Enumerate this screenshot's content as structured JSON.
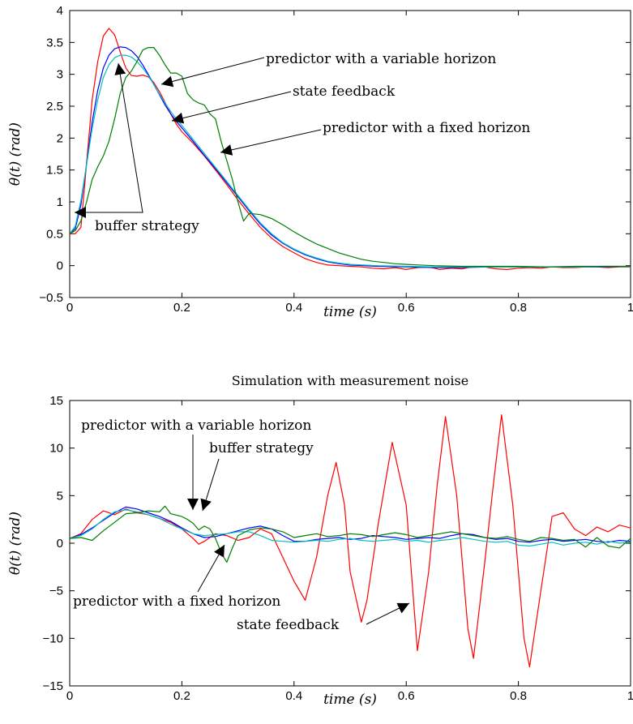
{
  "chart_data": [
    {
      "type": "line",
      "title": "",
      "xlabel": "time (s)",
      "ylabel": "θ(t) (rad)",
      "xlim": [
        0,
        1
      ],
      "ylim": [
        -0.5,
        4
      ],
      "xticks": [
        "0",
        "0.2",
        "0.4",
        "0.6",
        "0.8",
        "1"
      ],
      "yticks": [
        "−0.5",
        "0",
        "0.5",
        "1",
        "1.5",
        "2",
        "2.5",
        "3",
        "3.5",
        "4"
      ],
      "grid": false,
      "series": [
        {
          "color": "#ff0000",
          "x": [
            0,
            0.01,
            0.02,
            0.03,
            0.04,
            0.05,
            0.06,
            0.07,
            0.08,
            0.09,
            0.1,
            0.11,
            0.12,
            0.13,
            0.14,
            0.15,
            0.16,
            0.17,
            0.18,
            0.19,
            0.2,
            0.22,
            0.24,
            0.26,
            0.28,
            0.3,
            0.32,
            0.34,
            0.36,
            0.38,
            0.4,
            0.42,
            0.44,
            0.46,
            0.48,
            0.5,
            0.52,
            0.54,
            0.56,
            0.58,
            0.6,
            0.62,
            0.64,
            0.66,
            0.68,
            0.7,
            0.72,
            0.74,
            0.76,
            0.78,
            0.8,
            0.82,
            0.84,
            0.86,
            0.88,
            0.9,
            0.92,
            0.94,
            0.96,
            0.98,
            1.0
          ],
          "y": [
            0.5,
            0.5,
            0.6,
            1.6,
            2.6,
            3.2,
            3.6,
            3.72,
            3.62,
            3.35,
            3.1,
            2.98,
            2.97,
            2.99,
            2.96,
            2.87,
            2.73,
            2.56,
            2.38,
            2.22,
            2.1,
            1.92,
            1.72,
            1.5,
            1.27,
            1.03,
            0.81,
            0.6,
            0.43,
            0.3,
            0.2,
            0.11,
            0.05,
            0.01,
            0.0,
            -0.01,
            -0.02,
            -0.04,
            -0.05,
            -0.03,
            -0.06,
            -0.03,
            -0.02,
            -0.06,
            -0.04,
            -0.05,
            -0.01,
            -0.02,
            -0.05,
            -0.06,
            -0.04,
            -0.03,
            -0.04,
            -0.02,
            -0.03,
            -0.03,
            -0.02,
            -0.02,
            -0.03,
            -0.02,
            -0.02
          ]
        },
        {
          "color": "#0000ff",
          "x": [
            0,
            0.01,
            0.02,
            0.03,
            0.04,
            0.05,
            0.06,
            0.07,
            0.08,
            0.09,
            0.1,
            0.11,
            0.12,
            0.13,
            0.14,
            0.15,
            0.16,
            0.17,
            0.18,
            0.19,
            0.2,
            0.22,
            0.24,
            0.26,
            0.28,
            0.3,
            0.32,
            0.34,
            0.36,
            0.38,
            0.4,
            0.42,
            0.44,
            0.46,
            0.48,
            0.5,
            0.55,
            0.6,
            0.65,
            0.7,
            0.75,
            0.8,
            0.85,
            0.9,
            0.95,
            1.0
          ],
          "y": [
            0.5,
            0.58,
            0.95,
            1.6,
            2.25,
            2.75,
            3.1,
            3.3,
            3.4,
            3.43,
            3.42,
            3.37,
            3.28,
            3.15,
            3.0,
            2.84,
            2.68,
            2.52,
            2.38,
            2.26,
            2.16,
            1.95,
            1.73,
            1.52,
            1.3,
            1.08,
            0.86,
            0.65,
            0.48,
            0.35,
            0.25,
            0.17,
            0.11,
            0.06,
            0.03,
            0.01,
            -0.01,
            -0.02,
            -0.03,
            -0.03,
            -0.02,
            -0.02,
            -0.02,
            -0.02,
            -0.02,
            -0.01
          ]
        },
        {
          "color": "#00bfbf",
          "x": [
            0,
            0.01,
            0.02,
            0.03,
            0.04,
            0.05,
            0.06,
            0.07,
            0.08,
            0.09,
            0.1,
            0.11,
            0.12,
            0.13,
            0.14,
            0.15,
            0.16,
            0.17,
            0.18,
            0.19,
            0.2,
            0.22,
            0.24,
            0.26,
            0.28,
            0.3,
            0.32,
            0.34,
            0.36,
            0.38,
            0.4,
            0.42,
            0.44,
            0.46,
            0.48,
            0.5,
            0.55,
            0.6,
            0.65,
            0.7,
            0.75,
            0.8,
            0.85,
            0.9,
            0.95,
            1.0
          ],
          "y": [
            0.5,
            0.62,
            1.02,
            1.58,
            2.15,
            2.6,
            2.95,
            3.15,
            3.26,
            3.3,
            3.3,
            3.27,
            3.2,
            3.1,
            2.98,
            2.84,
            2.69,
            2.55,
            2.42,
            2.3,
            2.2,
            1.98,
            1.76,
            1.54,
            1.32,
            1.1,
            0.88,
            0.67,
            0.5,
            0.36,
            0.26,
            0.18,
            0.12,
            0.07,
            0.04,
            0.02,
            0.0,
            -0.01,
            -0.02,
            -0.02,
            -0.02,
            -0.02,
            -0.02,
            -0.02,
            -0.01,
            -0.01
          ]
        },
        {
          "color": "#007f00",
          "x": [
            0,
            0.01,
            0.02,
            0.03,
            0.04,
            0.05,
            0.06,
            0.07,
            0.08,
            0.09,
            0.1,
            0.11,
            0.12,
            0.13,
            0.14,
            0.15,
            0.16,
            0.17,
            0.18,
            0.19,
            0.2,
            0.21,
            0.22,
            0.23,
            0.24,
            0.25,
            0.26,
            0.27,
            0.28,
            0.29,
            0.3,
            0.31,
            0.32,
            0.34,
            0.36,
            0.38,
            0.4,
            0.42,
            0.44,
            0.46,
            0.48,
            0.5,
            0.52,
            0.54,
            0.56,
            0.58,
            0.6,
            0.65,
            0.7,
            0.75,
            0.8,
            0.85,
            0.9,
            0.95,
            1.0
          ],
          "y": [
            0.5,
            0.55,
            0.7,
            1.0,
            1.35,
            1.55,
            1.72,
            1.95,
            2.3,
            2.7,
            2.95,
            3.05,
            3.2,
            3.38,
            3.42,
            3.42,
            3.3,
            3.15,
            3.02,
            3.02,
            2.97,
            2.7,
            2.6,
            2.55,
            2.52,
            2.38,
            2.3,
            1.95,
            1.65,
            1.35,
            1.0,
            0.7,
            0.82,
            0.8,
            0.74,
            0.64,
            0.53,
            0.43,
            0.34,
            0.27,
            0.2,
            0.15,
            0.1,
            0.07,
            0.05,
            0.03,
            0.02,
            0.0,
            -0.01,
            -0.01,
            -0.01,
            -0.02,
            -0.01,
            -0.01,
            -0.01
          ]
        }
      ],
      "annotations": [
        {
          "text": "predictor with a variable horizon",
          "target": [
            0.165,
            2.76
          ]
        },
        {
          "text": "state feedback",
          "target": [
            0.185,
            2.2
          ]
        },
        {
          "text": "predictor with a fixed horizon",
          "target": [
            0.27,
            1.72
          ]
        },
        {
          "text": "buffer strategy",
          "targets": [
            [
              0.09,
              3.58
            ],
            [
              0.015,
              0.75
            ]
          ]
        }
      ]
    },
    {
      "type": "line",
      "title": "Simulation with measurement noise",
      "xlabel": "time (s)",
      "ylabel": "θ(t) (rad)",
      "xlim": [
        0,
        1
      ],
      "ylim": [
        -15,
        15
      ],
      "xticks": [
        "0",
        "0.2",
        "0.4",
        "0.6",
        "0.8",
        "1"
      ],
      "yticks": [
        "−15",
        "−10",
        "−5",
        "0",
        "5",
        "10",
        "15"
      ],
      "grid": false,
      "series": [
        {
          "color": "#ff0000",
          "x": [
            0,
            0.02,
            0.04,
            0.06,
            0.08,
            0.1,
            0.12,
            0.14,
            0.16,
            0.18,
            0.2,
            0.22,
            0.23,
            0.24,
            0.26,
            0.28,
            0.3,
            0.32,
            0.34,
            0.36,
            0.38,
            0.4,
            0.42,
            0.44,
            0.46,
            0.475,
            0.49,
            0.5,
            0.52,
            0.53,
            0.55,
            0.575,
            0.6,
            0.62,
            0.64,
            0.655,
            0.67,
            0.69,
            0.71,
            0.72,
            0.74,
            0.755,
            0.77,
            0.79,
            0.81,
            0.82,
            0.84,
            0.86,
            0.88,
            0.9,
            0.92,
            0.94,
            0.96,
            0.98,
            1.0
          ],
          "y": [
            0.5,
            1.0,
            2.5,
            3.4,
            3.0,
            3.6,
            3.2,
            3.0,
            2.6,
            2.2,
            1.5,
            0.5,
            -0.1,
            0.2,
            1.0,
            0.8,
            0.3,
            0.6,
            1.5,
            1.0,
            -1.5,
            -4.0,
            -6.0,
            -1.5,
            5.0,
            8.5,
            4.0,
            -3.0,
            -8.3,
            -6.0,
            2.0,
            10.6,
            4.0,
            -11.3,
            -3.0,
            6.0,
            13.3,
            5.0,
            -9.0,
            -12.1,
            -2.0,
            6.0,
            13.5,
            4.0,
            -10.0,
            -13.0,
            -5.0,
            2.8,
            3.2,
            1.5,
            0.8,
            1.7,
            1.2,
            1.9,
            1.6
          ]
        },
        {
          "color": "#0000ff",
          "x": [
            0,
            0.02,
            0.04,
            0.06,
            0.08,
            0.1,
            0.12,
            0.14,
            0.16,
            0.18,
            0.2,
            0.22,
            0.24,
            0.26,
            0.28,
            0.3,
            0.32,
            0.34,
            0.36,
            0.38,
            0.4,
            0.42,
            0.44,
            0.46,
            0.48,
            0.5,
            0.52,
            0.54,
            0.56,
            0.58,
            0.6,
            0.62,
            0.64,
            0.66,
            0.68,
            0.7,
            0.72,
            0.74,
            0.76,
            0.78,
            0.8,
            0.82,
            0.84,
            0.86,
            0.88,
            0.9,
            0.92,
            0.94,
            0.96,
            0.98,
            1.0
          ],
          "y": [
            0.5,
            0.9,
            1.6,
            2.4,
            3.2,
            3.8,
            3.6,
            3.2,
            2.8,
            2.3,
            1.6,
            1.0,
            0.6,
            0.7,
            1.0,
            1.3,
            1.6,
            1.8,
            1.5,
            0.8,
            0.2,
            0.2,
            0.4,
            0.5,
            0.6,
            0.4,
            0.5,
            0.8,
            0.7,
            0.6,
            0.4,
            0.5,
            0.6,
            0.5,
            0.8,
            1.0,
            0.9,
            0.6,
            0.4,
            0.5,
            0.2,
            0.1,
            0.3,
            0.4,
            0.2,
            0.3,
            0.4,
            0.2,
            0.1,
            0.3,
            0.2
          ]
        },
        {
          "color": "#00bfbf",
          "x": [
            0,
            0.02,
            0.04,
            0.06,
            0.08,
            0.1,
            0.12,
            0.14,
            0.16,
            0.18,
            0.2,
            0.22,
            0.24,
            0.26,
            0.28,
            0.3,
            0.32,
            0.34,
            0.36,
            0.38,
            0.4,
            0.42,
            0.44,
            0.46,
            0.48,
            0.5,
            0.52,
            0.54,
            0.56,
            0.58,
            0.6,
            0.62,
            0.64,
            0.66,
            0.68,
            0.7,
            0.72,
            0.74,
            0.76,
            0.78,
            0.8,
            0.82,
            0.84,
            0.86,
            0.88,
            0.9,
            0.92,
            0.94,
            0.96,
            0.98,
            1.0
          ],
          "y": [
            0.5,
            0.8,
            1.5,
            2.5,
            3.3,
            3.5,
            3.3,
            3.0,
            2.6,
            2.0,
            1.5,
            1.0,
            0.8,
            0.9,
            1.0,
            1.2,
            1.2,
            0.8,
            0.3,
            0.2,
            0.1,
            0.2,
            0.3,
            0.2,
            0.4,
            0.5,
            0.3,
            0.2,
            0.3,
            0.4,
            0.2,
            0.3,
            0.1,
            0.3,
            0.4,
            0.6,
            0.4,
            0.2,
            0.1,
            0.2,
            -0.2,
            -0.3,
            -0.1,
            0.1,
            -0.2,
            0.0,
            0.1,
            -0.1,
            0.2,
            0.0,
            0.1
          ]
        },
        {
          "color": "#007f00",
          "x": [
            0,
            0.02,
            0.04,
            0.06,
            0.08,
            0.1,
            0.12,
            0.14,
            0.16,
            0.17,
            0.18,
            0.2,
            0.21,
            0.22,
            0.23,
            0.24,
            0.25,
            0.26,
            0.27,
            0.28,
            0.29,
            0.3,
            0.32,
            0.34,
            0.36,
            0.38,
            0.4,
            0.42,
            0.44,
            0.46,
            0.48,
            0.5,
            0.52,
            0.54,
            0.56,
            0.58,
            0.6,
            0.62,
            0.64,
            0.66,
            0.68,
            0.7,
            0.72,
            0.74,
            0.76,
            0.78,
            0.8,
            0.82,
            0.84,
            0.86,
            0.88,
            0.9,
            0.92,
            0.94,
            0.96,
            0.98,
            1.0
          ],
          "y": [
            0.5,
            0.6,
            0.3,
            1.3,
            2.2,
            3.1,
            3.2,
            3.4,
            3.3,
            3.9,
            3.1,
            2.8,
            2.5,
            2.1,
            1.4,
            1.8,
            1.5,
            0.5,
            -1.0,
            -2.0,
            -0.5,
            0.8,
            1.4,
            1.6,
            1.5,
            1.2,
            0.6,
            0.8,
            1.0,
            0.7,
            0.8,
            1.0,
            0.9,
            0.7,
            0.9,
            1.1,
            0.9,
            0.6,
            0.8,
            1.0,
            1.2,
            1.0,
            0.8,
            0.6,
            0.5,
            0.7,
            0.4,
            0.2,
            0.6,
            0.5,
            0.3,
            0.4,
            -0.4,
            0.6,
            -0.3,
            -0.5,
            0.5
          ]
        }
      ],
      "annotations": [
        {
          "text": "predictor with a variable horizon",
          "target": [
            0.222,
            0.9
          ]
        },
        {
          "text": "buffer strategy",
          "target": [
            0.238,
            1.0
          ]
        },
        {
          "text": "predictor with a fixed horizon",
          "target": [
            0.272,
            -2.0
          ]
        },
        {
          "text": "state feedback",
          "target": [
            0.603,
            -10.0
          ]
        }
      ]
    }
  ]
}
